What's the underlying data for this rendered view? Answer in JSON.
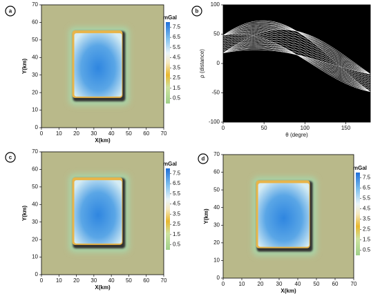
{
  "chart_data": [
    {
      "type": "heatmap",
      "label": "a",
      "xlabel": "X(km)",
      "ylabel": "Y(km)",
      "xlim": [
        0,
        70
      ],
      "ylim": [
        0,
        70
      ],
      "xticks": [
        0,
        10,
        20,
        30,
        40,
        50,
        60,
        70
      ],
      "yticks": [
        0,
        10,
        20,
        30,
        40,
        50,
        60,
        70
      ],
      "colorbar": {
        "label": "mGal",
        "clim": [
          0,
          8
        ],
        "ticks": [
          0.5,
          1.5,
          2.5,
          3.5,
          4.5,
          5.5,
          6.5,
          7.5
        ]
      }
    },
    {
      "type": "hough",
      "label": "b",
      "xlabel": "θ (degre)",
      "ylabel": "ρ (distance)",
      "xlim": [
        0,
        180
      ],
      "ylim": [
        -100,
        100
      ],
      "xticks": [
        0,
        50,
        100,
        150
      ],
      "yticks": [
        -100,
        -50,
        0,
        50,
        100
      ]
    },
    {
      "type": "heatmap",
      "label": "c",
      "xlabel": "X(km)",
      "ylabel": "Y(km)",
      "xlim": [
        0,
        70
      ],
      "ylim": [
        0,
        70
      ],
      "xticks": [
        0,
        10,
        20,
        30,
        40,
        50,
        60,
        70
      ],
      "yticks": [
        0,
        10,
        20,
        30,
        40,
        50,
        60,
        70
      ],
      "colorbar": {
        "label": "mGal",
        "clim": [
          0,
          8
        ],
        "ticks": [
          0.5,
          1.5,
          2.5,
          3.5,
          4.5,
          5.5,
          6.5,
          7.5
        ]
      }
    },
    {
      "type": "heatmap",
      "label": "d",
      "xlabel": "X(km)",
      "ylabel": "Y(km)",
      "xlim": [
        0,
        70
      ],
      "ylim": [
        0,
        70
      ],
      "xticks": [
        0,
        10,
        20,
        30,
        40,
        50,
        60,
        70
      ],
      "yticks": [
        0,
        10,
        20,
        30,
        40,
        50,
        60,
        70
      ],
      "colorbar": {
        "label": "mGal",
        "clim": [
          0,
          8
        ],
        "ticks": [
          0.5,
          1.5,
          2.5,
          3.5,
          4.5,
          5.5,
          6.5,
          7.5
        ]
      }
    }
  ]
}
